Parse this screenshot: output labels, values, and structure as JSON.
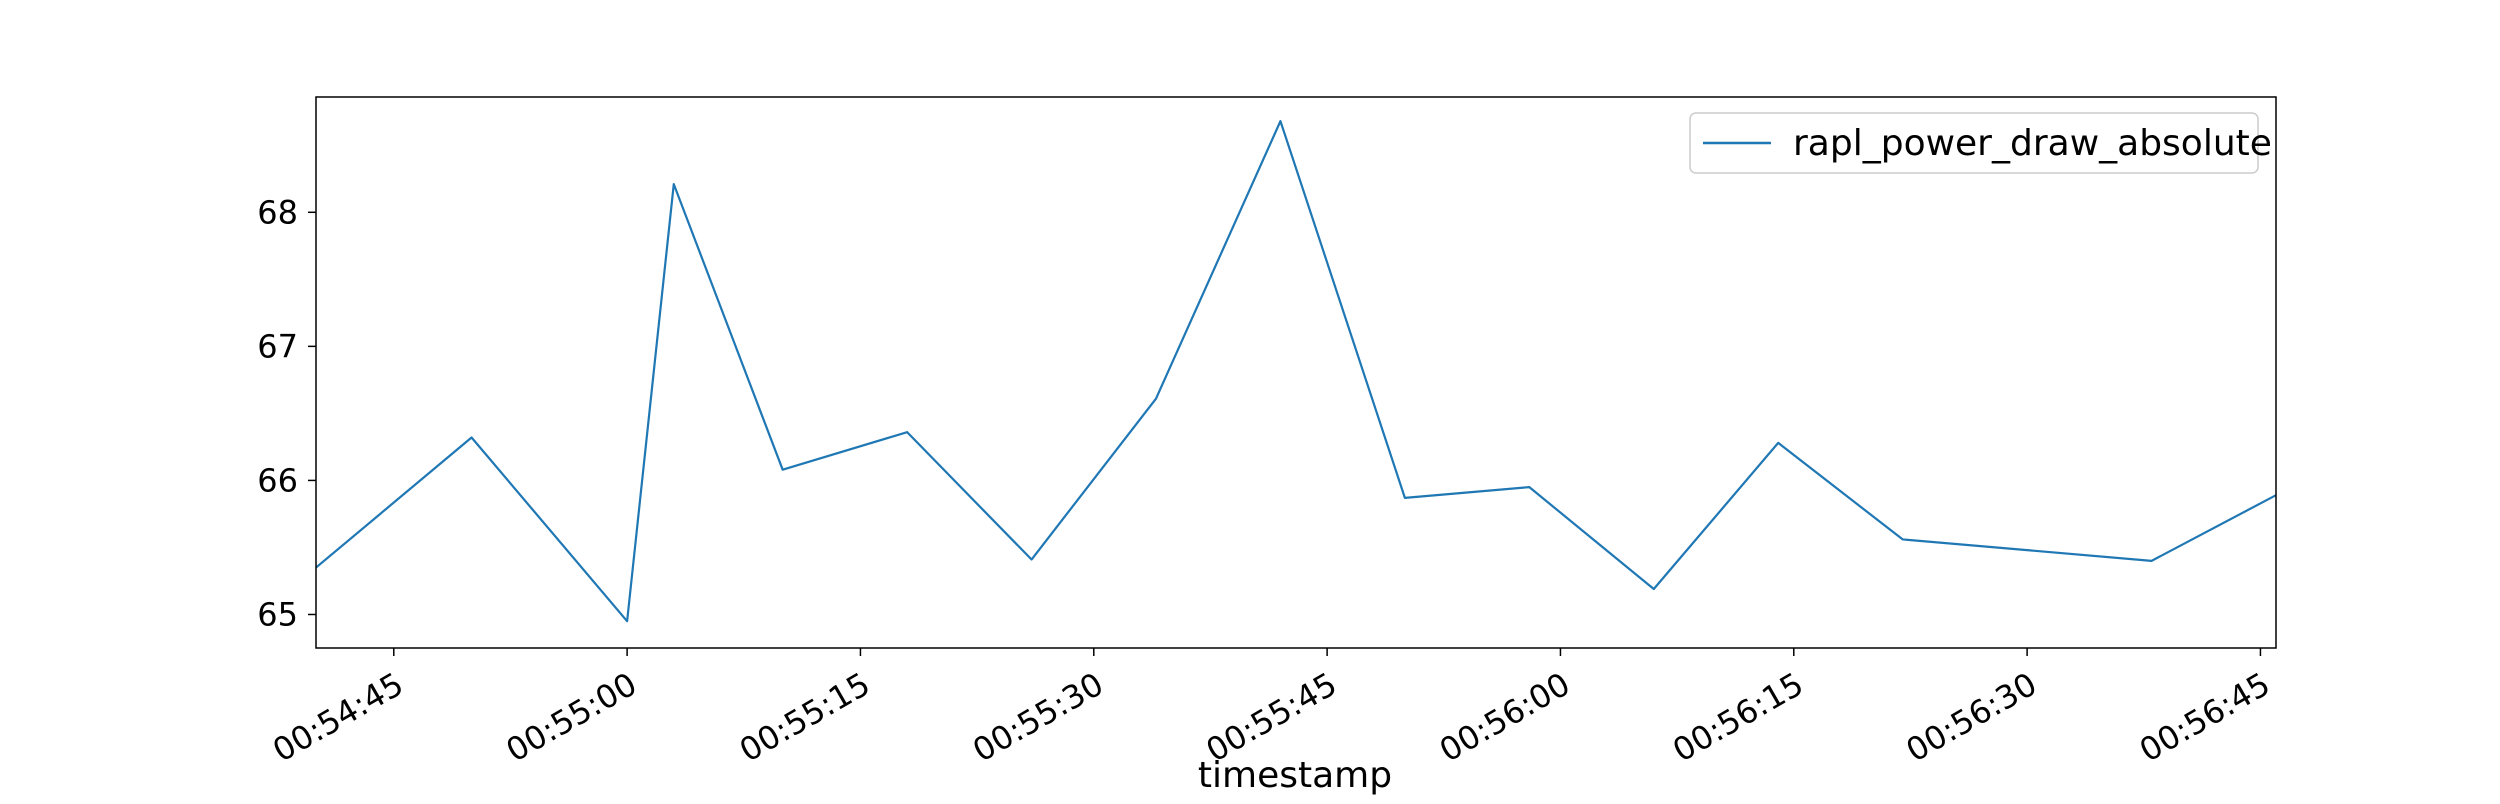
{
  "chart_data": {
    "type": "line",
    "title": "",
    "xlabel": "timestamp",
    "ylabel": "",
    "x": [
      "00:54:40",
      "00:54:50",
      "00:55:00",
      "00:55:03",
      "00:55:10",
      "00:55:18",
      "00:55:26",
      "00:55:34",
      "00:55:42",
      "00:55:50",
      "00:55:58",
      "00:56:06",
      "00:56:14",
      "00:56:22",
      "00:56:30",
      "00:56:38",
      "00:56:46"
    ],
    "series": [
      {
        "name": "rapl_power_draw_absolute",
        "color": "#1f77b4",
        "values": [
          65.35,
          66.32,
          64.95,
          68.21,
          66.08,
          66.36,
          65.41,
          66.61,
          68.68,
          65.87,
          65.95,
          65.19,
          66.28,
          65.56,
          65.48,
          65.4,
          65.89
        ]
      }
    ],
    "xlim": [
      "00:54:40",
      "00:56:46"
    ],
    "ylim": [
      64.75,
      68.86
    ],
    "xticks": [
      "00:54:45",
      "00:55:00",
      "00:55:15",
      "00:55:30",
      "00:55:45",
      "00:56:00",
      "00:56:15",
      "00:56:30",
      "00:56:45"
    ],
    "yticks": [
      65,
      66,
      67,
      68
    ],
    "legend": "top-right",
    "grid": false
  }
}
